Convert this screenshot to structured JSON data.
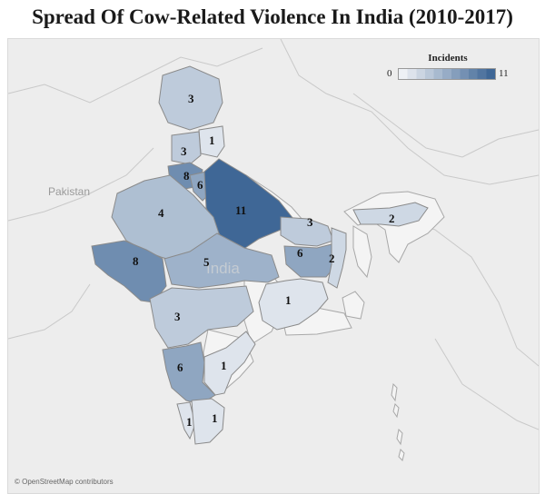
{
  "title": "Spread Of Cow-Related Violence In India (2010-2017)",
  "legend": {
    "title": "Incidents",
    "min": "0",
    "max": "11",
    "color_low": "#eef1f5",
    "color_high": "#3f6796"
  },
  "labels": {
    "pakistan": "Pakistan",
    "india": "India"
  },
  "attribution": "© OpenStreetMap contributors",
  "colors": {
    "background": "#ededed",
    "land_other": "#f4f4f4",
    "border": "#9a9a9a"
  },
  "states": [
    {
      "name": "jammu-kashmir",
      "value": 3
    },
    {
      "name": "himachal-pradesh",
      "value": 1
    },
    {
      "name": "punjab",
      "value": 3
    },
    {
      "name": "haryana",
      "value": 8
    },
    {
      "name": "delhi",
      "value": 6
    },
    {
      "name": "uttar-pradesh",
      "value": 11
    },
    {
      "name": "rajasthan",
      "value": 4
    },
    {
      "name": "gujarat",
      "value": 8
    },
    {
      "name": "madhya-pradesh",
      "value": 5
    },
    {
      "name": "bihar",
      "value": 3
    },
    {
      "name": "jharkhand",
      "value": 6
    },
    {
      "name": "west-bengal",
      "value": 2
    },
    {
      "name": "assam",
      "value": 2
    },
    {
      "name": "odisha",
      "value": 1
    },
    {
      "name": "maharashtra",
      "value": 3
    },
    {
      "name": "karnataka",
      "value": 6
    },
    {
      "name": "andhra-pradesh",
      "value": 1
    },
    {
      "name": "kerala",
      "value": 1
    },
    {
      "name": "tamil-nadu",
      "value": 1
    }
  ]
}
